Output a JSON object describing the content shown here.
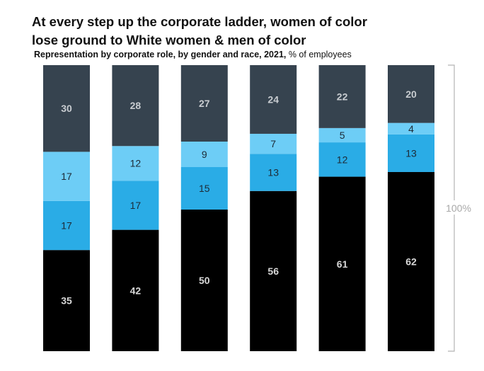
{
  "title_lines": [
    "At every step up the corporate ladder, women of color",
    "lose ground to White women & men of color"
  ],
  "subtitle": {
    "bold": "Representation by corporate role, by gender and race, 2021,",
    "normal": " % of employees"
  },
  "colors": {
    "top": "#36434f",
    "light": "#6dcdf6",
    "mid": "#2aace6",
    "bottom": "#000000",
    "label_on_dark": "#c8ccd0",
    "label_on_blue": "#1d2a36",
    "label_on_black": "#d8d8d8",
    "bracket": "#b4b4b4"
  },
  "chart_data": {
    "type": "bar",
    "stacked": true,
    "orientation": "vertical",
    "categories": [
      "",
      "",
      "",
      "",
      "",
      ""
    ],
    "series": [
      {
        "values": [
          35,
          42,
          50,
          56,
          61,
          62
        ]
      },
      {
        "values": [
          17,
          17,
          15,
          13,
          12,
          13
        ]
      },
      {
        "values": [
          17,
          12,
          9,
          7,
          5,
          4
        ]
      },
      {
        "values": [
          30,
          28,
          27,
          24,
          22,
          20
        ]
      }
    ],
    "ylim": [
      0,
      100
    ],
    "unit": "% of employees",
    "bracket_label": "100%",
    "legend": "none",
    "grid": false
  }
}
